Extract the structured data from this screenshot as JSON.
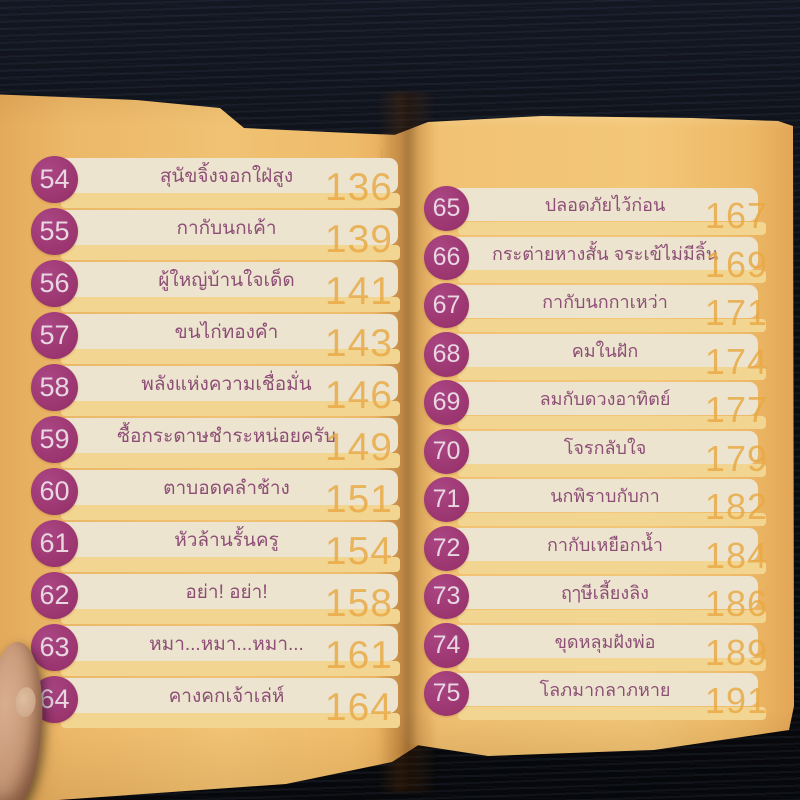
{
  "book": {
    "left_page": {
      "entries": [
        {
          "num": "54",
          "title": "สุนัขจิ้งจอกใฝ่สูง",
          "page": "136"
        },
        {
          "num": "55",
          "title": "กากับนกเค้า",
          "page": "139"
        },
        {
          "num": "56",
          "title": "ผู้ใหญ่บ้านใจเด็ด",
          "page": "141"
        },
        {
          "num": "57",
          "title": "ขนไก่ทองคำ",
          "page": "143"
        },
        {
          "num": "58",
          "title": "พลังแห่งความเชื่อมั่น",
          "page": "146"
        },
        {
          "num": "59",
          "title": "ซื้อกระดาษชำระหน่อยครับ",
          "page": "149"
        },
        {
          "num": "60",
          "title": "ตาบอดคลำช้าง",
          "page": "151"
        },
        {
          "num": "61",
          "title": "หัวล้านรั้นครู",
          "page": "154"
        },
        {
          "num": "62",
          "title": "อย่า! อย่า!",
          "page": "158"
        },
        {
          "num": "63",
          "title": "หมา...หมา...หมา...",
          "page": "161"
        },
        {
          "num": "64",
          "title": "คางคกเจ้าเล่ห์",
          "page": "164"
        }
      ]
    },
    "right_page": {
      "entries": [
        {
          "num": "65",
          "title": "ปลอดภัยไว้ก่อน",
          "page": "167"
        },
        {
          "num": "66",
          "title": "กระต่ายหางสั้น จระเข้ไม่มีลิ้น",
          "page": "169"
        },
        {
          "num": "67",
          "title": "กากับนกกาเหว่า",
          "page": "171"
        },
        {
          "num": "68",
          "title": "คมในฝัก",
          "page": "174"
        },
        {
          "num": "69",
          "title": "ลมกับดวงอาทิตย์",
          "page": "177"
        },
        {
          "num": "70",
          "title": "โจรกลับใจ",
          "page": "179"
        },
        {
          "num": "71",
          "title": "นกพิราบกับกา",
          "page": "182"
        },
        {
          "num": "72",
          "title": "กากับเหยือกน้ำ",
          "page": "184"
        },
        {
          "num": "73",
          "title": "ฤๅษีเลี้ยงลิง",
          "page": "186"
        },
        {
          "num": "74",
          "title": "ขุดหลุมฝังพ่อ",
          "page": "189"
        },
        {
          "num": "75",
          "title": "โลภมากลาภหาย",
          "page": "191"
        }
      ]
    }
  },
  "colors": {
    "background": "#0a0c11",
    "page": "#f0c273",
    "stripe_cream": "#ece4cf",
    "stripe_yellow": "#f2d590",
    "number_badge": "#9b356f",
    "badge_text": "#e8d6e1",
    "title_text": "#8d4e76",
    "page_number": "#e9a944"
  }
}
